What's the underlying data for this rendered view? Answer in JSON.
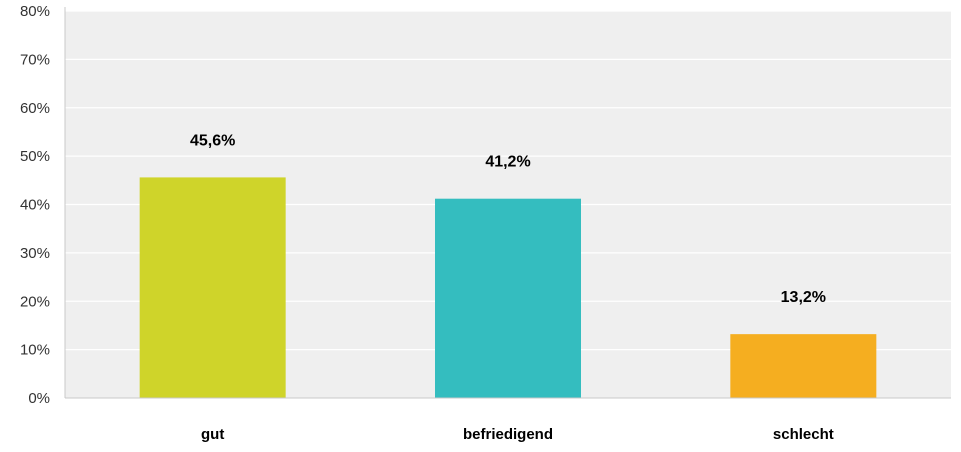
{
  "chart_data": {
    "type": "bar",
    "title": "",
    "xlabel": "",
    "ylabel": "",
    "categories": [
      "gut",
      "befriedigend",
      "schlecht"
    ],
    "values": [
      45.6,
      41.2,
      13.2
    ],
    "value_labels": [
      "45,6%",
      "41,2%",
      "13,2%"
    ],
    "bar_colors": [
      "#cfd42a",
      "#34bdbf",
      "#f5ae20"
    ],
    "ylim": [
      0,
      80
    ],
    "yticks": [
      0,
      10,
      20,
      30,
      40,
      50,
      60,
      70,
      80
    ],
    "ytick_labels": [
      "0%",
      "10%",
      "20%",
      "30%",
      "40%",
      "50%",
      "60%",
      "70%",
      "80%"
    ],
    "grid": true,
    "legend": "none",
    "colors": {
      "plot_background": "#efefef",
      "gridline": "#ffffff",
      "axis": "#c8c8c8",
      "text": "#000000",
      "tick_text": "#333333"
    }
  }
}
